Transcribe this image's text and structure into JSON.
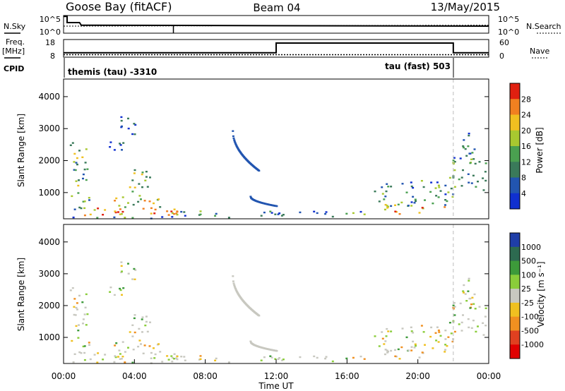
{
  "header": {
    "station": "Goose Bay (fitACF)",
    "beam": "Beam 04",
    "date": "13/May/2015"
  },
  "noise_panel": {
    "left_label": "N.Sky",
    "right_label": "N.Search",
    "ticks": [
      "10^5",
      "10^0"
    ]
  },
  "freq_panel": {
    "left_label_1": "Freq.",
    "left_label_2": "[MHz]",
    "left_ticks": [
      "18",
      "8"
    ],
    "right_label": "Nave",
    "right_ticks": [
      "60",
      "0"
    ]
  },
  "cpid": {
    "label": "CPID",
    "program_1": "themis (tau) -3310",
    "program_2": "tau (fast) 503"
  },
  "x_axis": {
    "label": "Time UT",
    "ticks": [
      "00:00",
      "04:00",
      "08:00",
      "12:00",
      "16:00",
      "20:00",
      "00:00"
    ]
  },
  "power_panel": {
    "ylabel": "Slant Range [km]",
    "yticks": [
      "1000",
      "2000",
      "3000",
      "4000"
    ],
    "colorbar_label": "Power [dB]",
    "colorbar_ticks": [
      "4",
      "8",
      "12",
      "16",
      "20",
      "24",
      "28"
    ]
  },
  "velocity_panel": {
    "ylabel": "Slant Range [km]",
    "yticks": [
      "1000",
      "2000",
      "3000",
      "4000"
    ],
    "colorbar_label": "Velocity [m s⁻¹]",
    "colorbar_ticks": [
      "1000",
      "500",
      "100",
      "25",
      "-25",
      "-100",
      "-500",
      "-1000"
    ]
  },
  "colors": {
    "power_scale": [
      "#1030d0",
      "#2255b0",
      "#3a7a5a",
      "#4aa050",
      "#a8c830",
      "#f0c020",
      "#f08020",
      "#e02010"
    ],
    "velocity_scale": [
      "#1f3ea8",
      "#2d6a50",
      "#3d9a3a",
      "#8acd3a",
      "#c8c8c0",
      "#f0c020",
      "#f09020",
      "#e04020",
      "#e00000"
    ]
  },
  "chart_data": [
    {
      "type": "line",
      "name": "noise",
      "x_range_hours": [
        0,
        24
      ],
      "series": [
        {
          "name": "N.Sky",
          "x": [
            0,
            0.2,
            0.2,
            0.9,
            1.0,
            24
          ],
          "y": [
            0.95,
            0.95,
            0.6,
            0.6,
            0.45,
            0.4
          ]
        },
        {
          "name": "N.Search",
          "x": [
            0,
            24
          ],
          "y": [
            0.4,
            0.45
          ]
        }
      ]
    },
    {
      "type": "line",
      "name": "frequency",
      "x_range_hours": [
        0,
        24
      ],
      "ylim": [
        8,
        18
      ],
      "series": [
        {
          "name": "Freq.",
          "x": [
            0,
            12.0,
            12.0,
            22.0,
            22.0,
            24
          ],
          "y": [
            10.5,
            10.5,
            16.0,
            16.0,
            10.5,
            10.5
          ]
        },
        {
          "name": "Nave",
          "x": [
            0,
            24
          ],
          "y": [
            9.4,
            9.4
          ]
        }
      ]
    },
    {
      "type": "heatmap",
      "name": "range-time",
      "x_range_hours": [
        0,
        24
      ],
      "ylim": [
        180,
        4550
      ],
      "regions": [
        {
          "t0": 0.3,
          "t1": 1.3,
          "r0": 1050,
          "r1": 2600,
          "v": 0.45
        },
        {
          "t0": 0.4,
          "t1": 1.5,
          "r0": 500,
          "r1": 1050,
          "v": 0.4
        },
        {
          "t0": 1.0,
          "t1": 6.5,
          "r0": 300,
          "r1": 550,
          "v": 0.85
        },
        {
          "t0": 0.5,
          "t1": 10.0,
          "r0": 200,
          "r1": 300,
          "v": 0.3
        },
        {
          "t0": 2.5,
          "t1": 3.5,
          "r0": 2300,
          "r1": 2900,
          "v": 0.1
        },
        {
          "t0": 3.2,
          "t1": 4.2,
          "r0": 2800,
          "r1": 3400,
          "v": 0.15
        },
        {
          "t0": 3.5,
          "t1": 5.0,
          "r0": 900,
          "r1": 1800,
          "v": 0.5
        },
        {
          "t0": 2.5,
          "t1": 6.0,
          "r0": 550,
          "r1": 900,
          "v": 0.55
        },
        {
          "t0": 4.5,
          "t1": 6.5,
          "r0": 300,
          "r1": 500,
          "v": 0.75
        },
        {
          "t0": 6.5,
          "t1": 9.0,
          "r0": 300,
          "r1": 450,
          "v": 0.35
        },
        {
          "t0": 11.0,
          "t1": 17.0,
          "r0": 250,
          "r1": 450,
          "v": 0.3
        },
        {
          "t0": 17.5,
          "t1": 22.0,
          "r0": 600,
          "r1": 1400,
          "v": 0.3
        },
        {
          "t0": 18.0,
          "t1": 21.5,
          "r0": 350,
          "r1": 650,
          "v": 0.75
        },
        {
          "t0": 21.7,
          "t1": 23.8,
          "r0": 1100,
          "r1": 2000,
          "v": 0.35
        },
        {
          "t0": 21.8,
          "t1": 23.2,
          "r0": 1900,
          "r1": 2900,
          "v": 0.3
        }
      ],
      "arcs": [
        {
          "t0": 9.5,
          "t1": 11.0,
          "r0": 2950,
          "r1": 1700
        },
        {
          "t0": 10.5,
          "t1": 12.0,
          "r0": 900,
          "r1": 600
        }
      ],
      "cpid_boundary_hour": 22.0
    }
  ]
}
